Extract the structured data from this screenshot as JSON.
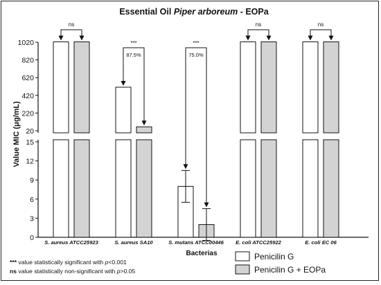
{
  "chart_data": {
    "type": "bar",
    "title_prefix": "Essential Oil ",
    "title_italic": "Piper arboreum",
    "title_suffix": " - EOPa",
    "xlabel": "Bacterias",
    "ylabel": "Value MIC (μg/mL)",
    "categories": [
      {
        "italic": "S. aureus",
        "rest": " ATCC25923"
      },
      {
        "italic": "S. aureus",
        "rest": " SA10"
      },
      {
        "italic": "S. mutans",
        "rest": " ATCC00446"
      },
      {
        "italic": "E. coli",
        "rest": " ATCC25922"
      },
      {
        "italic": "E. coli",
        "rest": " EC 06"
      }
    ],
    "series": [
      {
        "name": "Penicilin G",
        "color": "#ffffff",
        "values": [
          1024,
          512,
          8,
          1024,
          1024
        ],
        "error": [
          null,
          null,
          2.5,
          null,
          null
        ]
      },
      {
        "name": "Penicilin G + EOPa",
        "color": "#d3d3d3",
        "values": [
          1024,
          64,
          2,
          1024,
          1024
        ],
        "error": [
          null,
          null,
          2.5,
          null,
          null
        ]
      }
    ],
    "y_axis_lower": {
      "range": [
        0,
        15
      ],
      "ticks": [
        "0",
        "3",
        "6",
        "9",
        "12",
        "15"
      ]
    },
    "y_axis_upper": {
      "range": [
        20,
        1020
      ],
      "ticks": [
        "20",
        "220",
        "420",
        "620",
        "820",
        "1020"
      ]
    },
    "significance": [
      {
        "category_index": 0,
        "label": "ns",
        "percent": ""
      },
      {
        "category_index": 1,
        "label": "***",
        "percent": "87.5%"
      },
      {
        "category_index": 2,
        "label": "***",
        "percent": "75.0%"
      },
      {
        "category_index": 3,
        "label": "ns",
        "percent": ""
      },
      {
        "category_index": 4,
        "label": "ns",
        "percent": ""
      }
    ],
    "grid": false
  },
  "footnotes": {
    "line1_symbol": "***",
    "line1_prefix": " value statistically significant with ",
    "line1_var": "p",
    "line1_cond": "<0.001",
    "line2_symbol": "ns",
    "line2_prefix": "  value statistically non-significant with ",
    "line2_var": "p",
    "line2_cond": ">0.05"
  }
}
